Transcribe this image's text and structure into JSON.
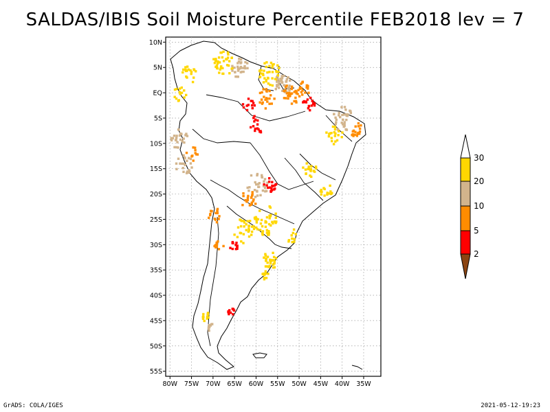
{
  "title": "SALDAS/IBIS Soil Moisture Percentile FEB2018 lev = 7",
  "footer": {
    "left": "GrADS: COLA/IGES",
    "right": "2021-05-12-19:23"
  },
  "map": {
    "region": "South America",
    "lon_range": [
      -81,
      -31
    ],
    "lat_range": [
      -56,
      11
    ],
    "x_ticks": [
      "80W",
      "75W",
      "70W",
      "65W",
      "60W",
      "55W",
      "50W",
      "45W",
      "40W",
      "35W"
    ],
    "y_ticks": [
      "10N",
      "5N",
      "EQ",
      "5S",
      "10S",
      "15S",
      "20S",
      "25S",
      "30S",
      "35S",
      "40S",
      "45S",
      "50S",
      "55S"
    ],
    "gridlines": true
  },
  "legend": {
    "labels": [
      "30",
      "20",
      "10",
      "5",
      "2"
    ],
    "colors": {
      "above_30": "#ffffff",
      "20_30": "#ffd700",
      "10_20": "#d2b48c",
      "5_10": "#ff8c00",
      "2_5": "#ff0000",
      "below_2": "#8b4513"
    }
  },
  "chart_data": {
    "type": "heatmap",
    "title": "SALDAS/IBIS Soil Moisture Percentile FEB2018 lev = 7",
    "x_ticks": [
      "80W",
      "75W",
      "70W",
      "65W",
      "60W",
      "55W",
      "50W",
      "45W",
      "40W",
      "35W"
    ],
    "y_ticks": [
      "10N",
      "5N",
      "EQ",
      "5S",
      "10S",
      "15S",
      "20S",
      "25S",
      "30S",
      "35S",
      "40S",
      "45S",
      "50S",
      "55S"
    ],
    "color_scale_breaks": [
      2,
      5,
      10,
      20,
      30
    ]
  }
}
